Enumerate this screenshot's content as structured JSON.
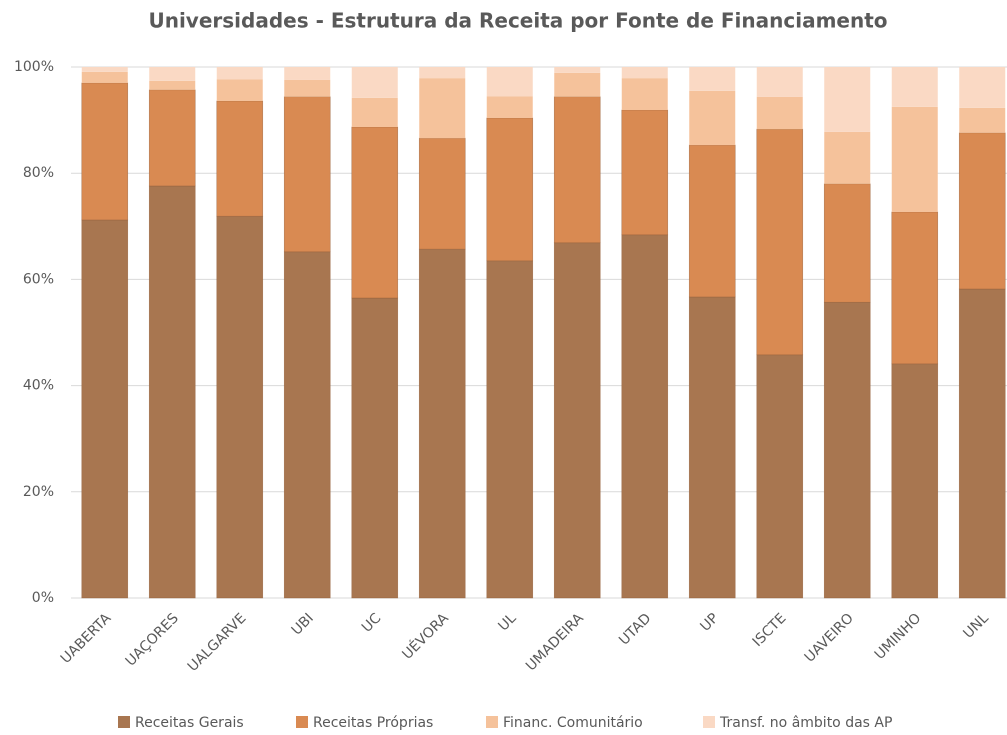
{
  "chart_data": {
    "type": "stacked_bar",
    "title": "Universidades - Estrutura da Receita por Fonte de Financiamento",
    "categories": [
      "UABERTA",
      "UAÇORES",
      "UALGARVE",
      "UBI",
      "UC",
      "UÉVORA",
      "UL",
      "UMADEIRA",
      "UTAD",
      "UP",
      "ISCTE",
      "UAVEIRO",
      "UMINHO",
      "UNL"
    ],
    "series": [
      {
        "name": "Receitas Gerais",
        "color": "#a87650",
        "values": [
          71.2,
          77.6,
          71.9,
          65.2,
          56.5,
          65.7,
          63.5,
          66.9,
          68.4,
          56.7,
          45.8,
          55.7,
          44.1,
          58.2
        ]
      },
      {
        "name": "Receitas Próprias",
        "color": "#d98a52",
        "values": [
          25.8,
          18.1,
          21.7,
          29.2,
          32.2,
          20.9,
          26.9,
          27.5,
          23.5,
          28.6,
          42.5,
          22.3,
          28.6,
          29.4
        ]
      },
      {
        "name": "Financ. Comunitário",
        "color": "#f5c29b",
        "values": [
          2.1,
          1.7,
          4.1,
          3.2,
          5.5,
          11.3,
          4.1,
          4.5,
          6.0,
          10.2,
          6.1,
          9.8,
          19.8,
          4.7
        ]
      },
      {
        "name": "Transf. no âmbito das AP",
        "color": "#fad9c4",
        "values": [
          0.9,
          2.6,
          2.3,
          2.4,
          5.8,
          2.1,
          5.5,
          1.1,
          2.1,
          4.5,
          5.6,
          12.2,
          7.5,
          7.7
        ]
      }
    ],
    "ylim": [
      0,
      100
    ],
    "yticks": [
      {
        "value": 0,
        "label": "0%"
      },
      {
        "value": 20,
        "label": "20%"
      },
      {
        "value": 40,
        "label": "40%"
      },
      {
        "value": 60,
        "label": "60%"
      },
      {
        "value": 80,
        "label": "80%"
      },
      {
        "value": 100,
        "label": "100%"
      }
    ],
    "grid": true,
    "legend": "bottom"
  }
}
